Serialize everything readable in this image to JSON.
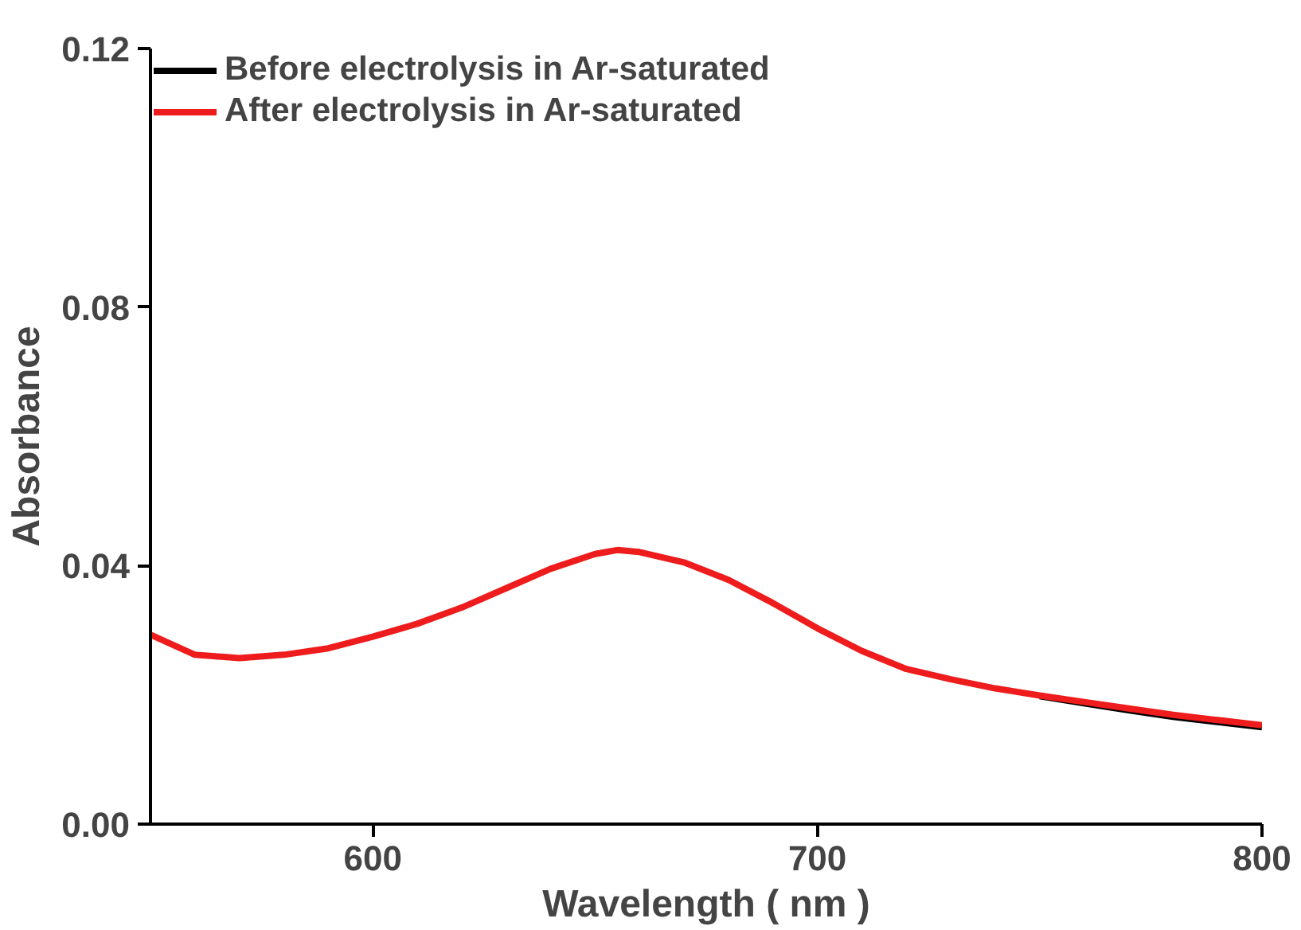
{
  "chart_data": {
    "type": "line",
    "xlabel": "Wavelength ( nm )",
    "ylabel": "Absorbance",
    "x": [
      550,
      560,
      570,
      580,
      590,
      600,
      610,
      620,
      630,
      640,
      650,
      655,
      660,
      670,
      680,
      690,
      700,
      710,
      720,
      730,
      740,
      750,
      760,
      770,
      780,
      790,
      800
    ],
    "series": [
      {
        "name": "Before electrolysis in Ar-saturated",
        "color": "#000000",
        "values": [
          null,
          null,
          null,
          null,
          null,
          null,
          null,
          null,
          null,
          null,
          null,
          null,
          null,
          null,
          null,
          null,
          null,
          null,
          null,
          null,
          null,
          0.0198,
          0.0187,
          0.0176,
          0.0166,
          0.0158,
          0.015
        ]
      },
      {
        "name": "After electrolysis in Ar-saturated",
        "color": "#ee1c1c",
        "values": [
          0.0293,
          0.0262,
          0.0257,
          0.0262,
          0.0272,
          0.029,
          0.031,
          0.0335,
          0.0365,
          0.0395,
          0.0418,
          0.0424,
          0.0421,
          0.0405,
          0.0378,
          0.0342,
          0.0303,
          0.0268,
          0.024,
          0.0224,
          0.021,
          0.0199,
          0.0189,
          0.0179,
          0.0169,
          0.0161,
          0.0153
        ]
      }
    ],
    "xlim": [
      550,
      800
    ],
    "xticks": [
      600,
      700,
      800
    ],
    "ylim": [
      0,
      0.12
    ],
    "yticks": [
      {
        "value": 0,
        "label": "0.00"
      },
      {
        "value": 0.04,
        "label": "0.04"
      },
      {
        "value": 0.08,
        "label": "0.08"
      },
      {
        "value": 0.12,
        "label": "0.12"
      }
    ],
    "grid": false,
    "legend": "top left",
    "line_style": "solid"
  }
}
